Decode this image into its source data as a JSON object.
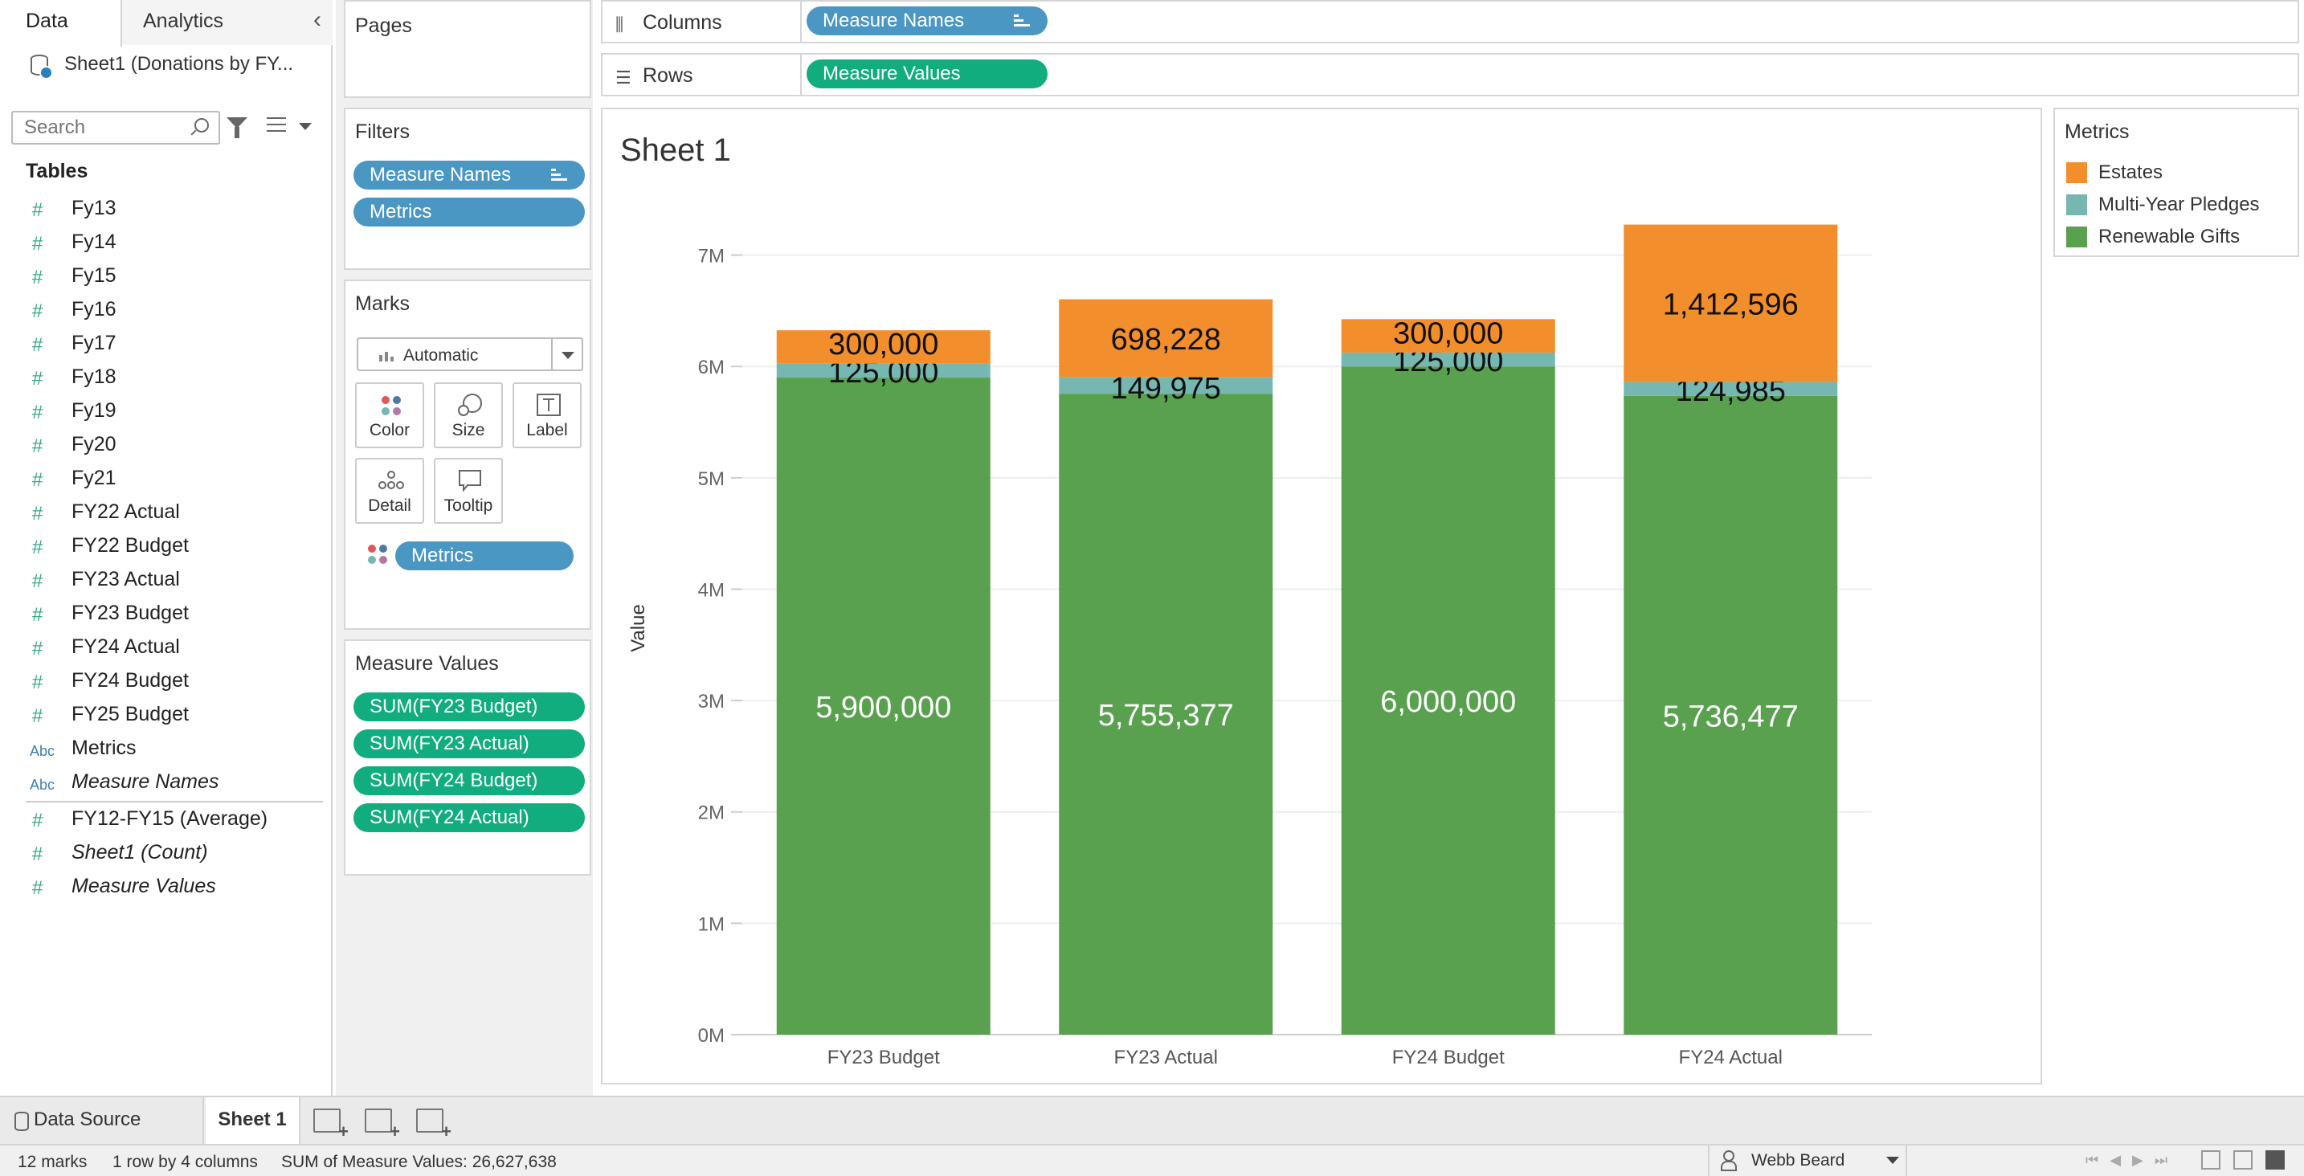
{
  "side_tabs": {
    "data": "Data",
    "analytics": "Analytics"
  },
  "datasource": "Sheet1 (Donations by FY...",
  "search_placeholder": "Search",
  "tables_label": "Tables",
  "fields": [
    {
      "name": "Fy13",
      "type": "measure"
    },
    {
      "name": "Fy14",
      "type": "measure"
    },
    {
      "name": "Fy15",
      "type": "measure"
    },
    {
      "name": "Fy16",
      "type": "measure"
    },
    {
      "name": "Fy17",
      "type": "measure"
    },
    {
      "name": "Fy18",
      "type": "measure"
    },
    {
      "name": "Fy19",
      "type": "measure"
    },
    {
      "name": "Fy20",
      "type": "measure"
    },
    {
      "name": "Fy21",
      "type": "measure"
    },
    {
      "name": "FY22 Actual",
      "type": "measure"
    },
    {
      "name": "FY22 Budget",
      "type": "measure"
    },
    {
      "name": "FY23 Actual",
      "type": "measure"
    },
    {
      "name": "FY23 Budget",
      "type": "measure"
    },
    {
      "name": "FY24 Actual",
      "type": "measure"
    },
    {
      "name": "FY24 Budget",
      "type": "measure"
    },
    {
      "name": "FY25 Budget",
      "type": "measure"
    },
    {
      "name": "Metrics",
      "type": "dimension"
    },
    {
      "name": "Measure Names",
      "type": "dimension",
      "italic": true
    },
    {
      "name": "FY12-FY15 (Average)",
      "type": "measure"
    },
    {
      "name": "Sheet1 (Count)",
      "type": "measure",
      "italic": true
    },
    {
      "name": "Measure Values",
      "type": "measure",
      "italic": true
    }
  ],
  "field_icons": {
    "measure": "#",
    "dimension": "Abc"
  },
  "cards": {
    "pages": "Pages",
    "filters": "Filters",
    "filter_pills": [
      "Measure Names",
      "Metrics"
    ],
    "marks": "Marks",
    "mark_type": "Automatic",
    "mark_buttons": [
      "Color",
      "Size",
      "Label",
      "Detail",
      "Tooltip"
    ],
    "marks_pill": "Metrics",
    "measure_values": "Measure Values",
    "measure_value_pills": [
      "SUM(FY23 Budget)",
      "SUM(FY23 Actual)",
      "SUM(FY24 Budget)",
      "SUM(FY24 Actual)"
    ]
  },
  "shelves": {
    "columns_label": "Columns",
    "columns_pill": "Measure Names",
    "rows_label": "Rows",
    "rows_pill": "Measure Values"
  },
  "legend": {
    "title": "Metrics",
    "items": [
      {
        "label": "Estates",
        "color": "#f28e2b"
      },
      {
        "label": "Multi-Year Pledges",
        "color": "#76b7b2"
      },
      {
        "label": "Renewable Gifts",
        "color": "#59a14f"
      }
    ]
  },
  "chart_data": {
    "type": "bar",
    "stacked": true,
    "title": "Sheet 1",
    "ylabel": "Value",
    "xlabel": "",
    "categories": [
      "FY23 Budget",
      "FY23 Actual",
      "FY24 Budget",
      "FY24 Actual"
    ],
    "series": [
      {
        "name": "Renewable Gifts",
        "values": [
          5900000,
          5755377,
          6000000,
          5736477
        ],
        "labels": [
          "5,900,000",
          "5,755,377",
          "6,000,000",
          "5,736,477"
        ],
        "color": "#59a14f"
      },
      {
        "name": "Multi-Year Pledges",
        "values": [
          125000,
          149975,
          125000,
          124985
        ],
        "labels": [
          "125,000",
          "149,975",
          "125,000",
          "124,985"
        ],
        "color": "#76b7b2"
      },
      {
        "name": "Estates",
        "values": [
          300000,
          698228,
          300000,
          1412596
        ],
        "labels": [
          "300,000",
          "698,228",
          "300,000",
          "1,412,596"
        ],
        "color": "#f28e2b"
      }
    ],
    "yticks": [
      "0M",
      "1M",
      "2M",
      "3M",
      "4M",
      "5M",
      "6M",
      "7M"
    ],
    "ylim": [
      0,
      7300000
    ],
    "grid": true,
    "legend": "right"
  },
  "sheet_tabs": {
    "data_source": "Data Source",
    "sheet": "Sheet 1"
  },
  "status": {
    "marks": "12 marks",
    "dims": "1 row by 4 columns",
    "sum": "SUM of Measure Values: 26,627,638",
    "user": "Webb Beard"
  }
}
